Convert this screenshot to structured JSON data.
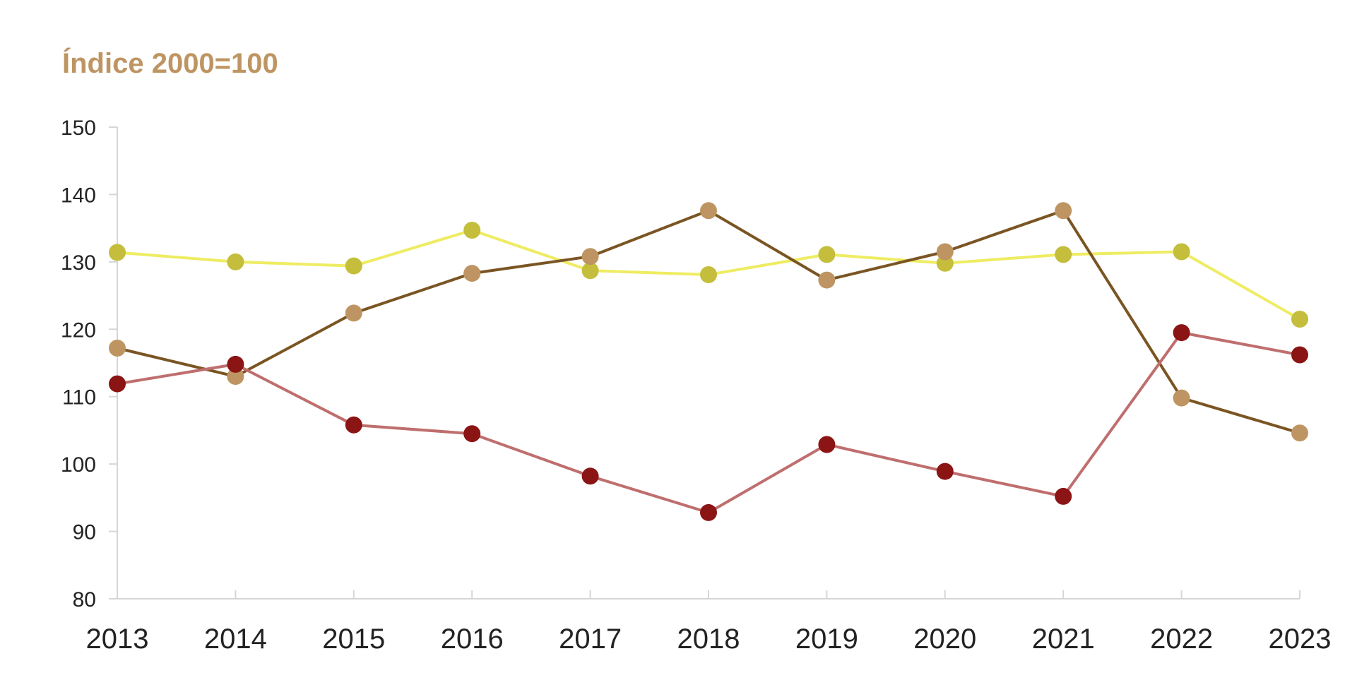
{
  "chart_data": {
    "type": "line",
    "title": "Índice 2000=100",
    "xlabel": "",
    "ylabel": "",
    "ylim": [
      80,
      150
    ],
    "yticks": [
      80,
      90,
      100,
      110,
      120,
      130,
      140,
      150
    ],
    "grid": false,
    "legend": "none",
    "categories": [
      "2013",
      "2014",
      "2015",
      "2016",
      "2017",
      "2018",
      "2019",
      "2020",
      "2021",
      "2022",
      "2023"
    ],
    "series": [
      {
        "line_color": "#EEEC62",
        "marker_color": "#C4BE3C",
        "values": [
          131.4,
          130.0,
          129.4,
          134.7,
          128.7,
          128.1,
          131.1,
          129.8,
          131.1,
          131.5,
          121.5
        ]
      },
      {
        "line_color": "#7A5523",
        "marker_color": "#BE9562",
        "values": [
          117.2,
          113.0,
          122.4,
          128.3,
          130.8,
          137.6,
          127.3,
          131.5,
          137.6,
          109.8,
          104.6
        ]
      },
      {
        "line_color": "#BF6E6E",
        "marker_color": "#8B1414",
        "values": [
          111.9,
          114.8,
          105.8,
          104.5,
          98.2,
          92.8,
          102.9,
          98.9,
          95.2,
          119.5,
          116.2
        ]
      }
    ]
  },
  "colors": {
    "title": "#BE9562",
    "axis": "#D6D6D6",
    "tick_text": "#222222"
  }
}
